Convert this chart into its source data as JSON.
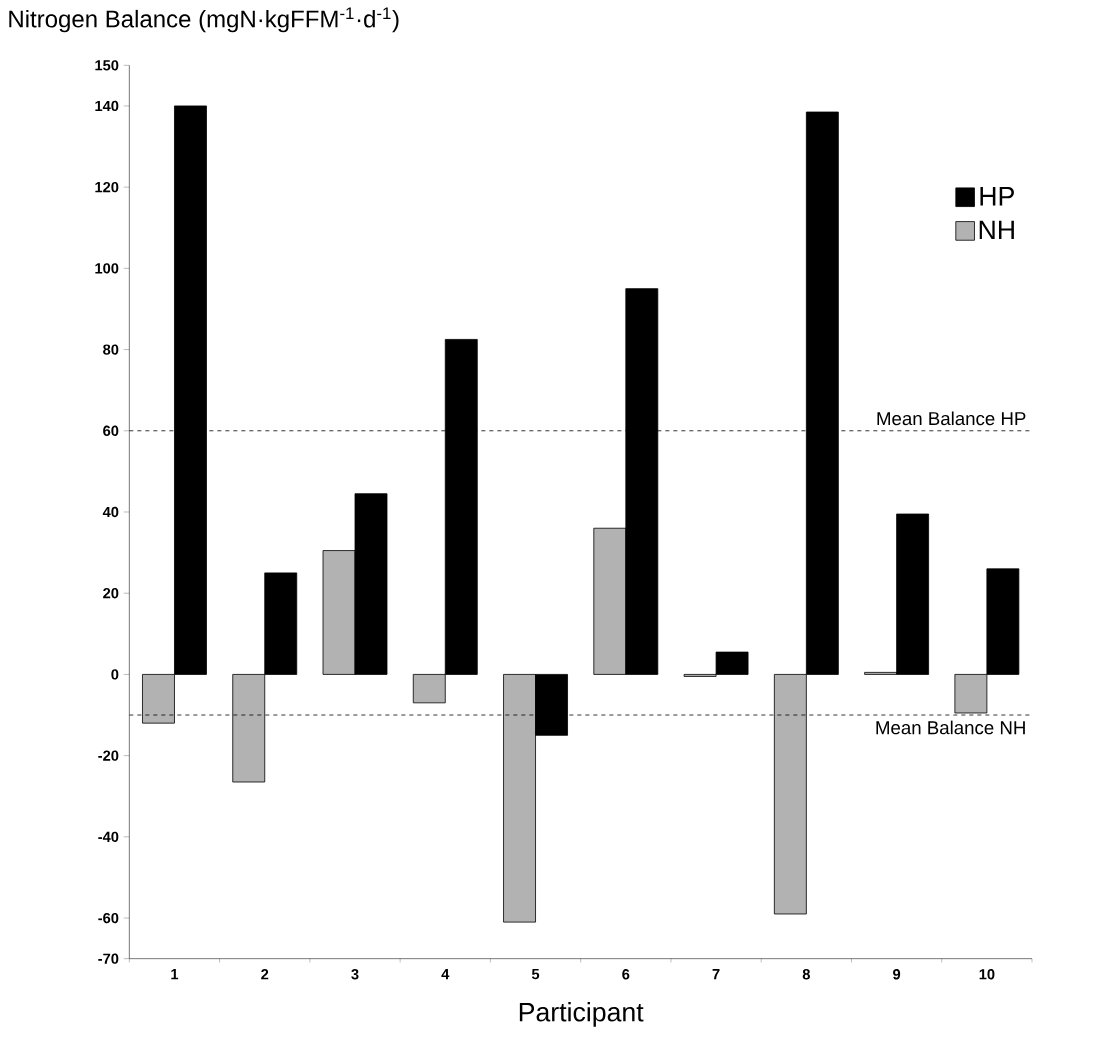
{
  "chart_data": {
    "type": "bar",
    "ylabel": "Nitrogen Balance (mgN·kgFFM$^{-1}$·d$^{-1}$)",
    "xlabel": "Participant",
    "categories": [
      "1",
      "2",
      "3",
      "4",
      "5",
      "6",
      "7",
      "8",
      "9",
      "10"
    ],
    "series": [
      {
        "name": "NH",
        "color": "#b2b2b2",
        "values": [
          -12,
          -26.5,
          30.5,
          -7,
          -61,
          36,
          -0.5,
          -59,
          0.5,
          -9.5
        ]
      },
      {
        "name": "HP",
        "color": "#000000",
        "values": [
          140,
          25,
          44.5,
          82.5,
          -15,
          95,
          5.5,
          138.5,
          39.5,
          26
        ]
      }
    ],
    "ylim": [
      -70,
      150
    ],
    "yticks": [
      -70,
      -60,
      -40,
      -20,
      0,
      20,
      40,
      60,
      80,
      100,
      120,
      140,
      150
    ],
    "ref_lines": [
      {
        "axis": "y",
        "value": 60,
        "label": "Mean Balance HP",
        "line_style": "dashed"
      },
      {
        "axis": "y",
        "value": -10,
        "label": "Mean Balance NH",
        "line_style": "dashed"
      }
    ],
    "legend": "top right",
    "grid": false
  }
}
